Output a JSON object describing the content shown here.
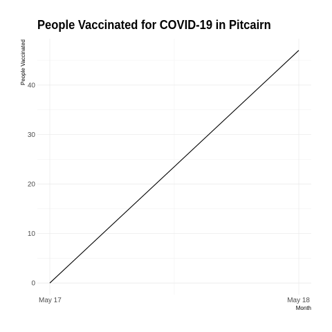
{
  "chart_data": {
    "type": "line",
    "title": "People Vaccinated for COVID-19 in Pitcairn",
    "xlabel": "Month",
    "ylabel": "People Vaccinated",
    "x": [
      "May 17",
      "May 18"
    ],
    "x_tick_labels": [
      "May 17",
      "May 18"
    ],
    "series": [
      {
        "values": [
          0,
          47
        ]
      }
    ],
    "yticks": [
      0,
      10,
      20,
      30,
      40
    ],
    "ylim": [
      -2.35,
      49.35
    ],
    "grid": true,
    "legend": "none",
    "line_color": "#000000",
    "grid_color": "#ebebeb"
  }
}
